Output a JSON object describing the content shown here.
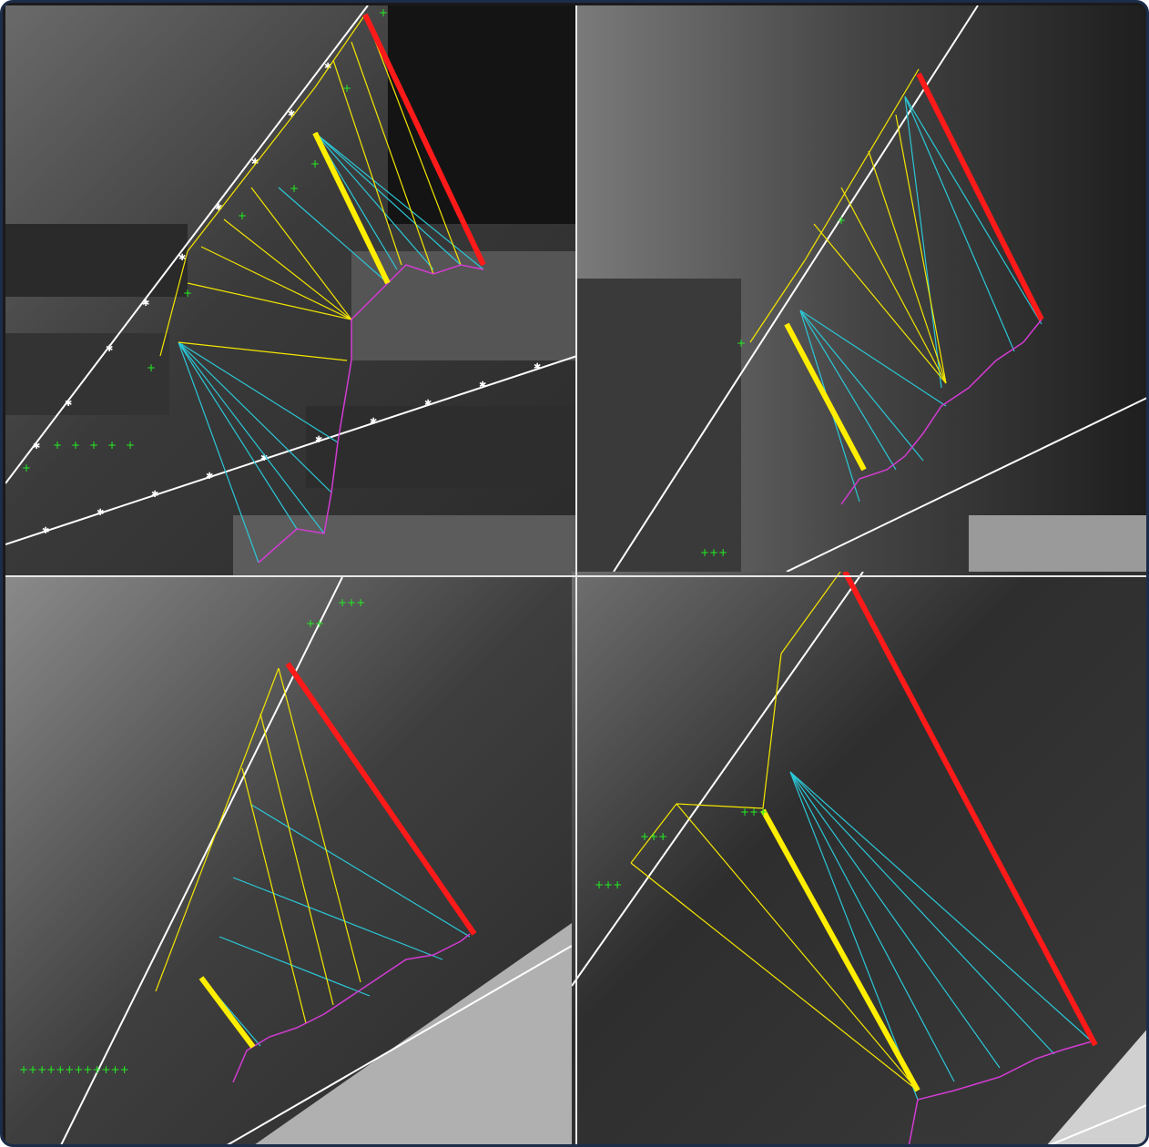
{
  "image": {
    "description_colors": {
      "frame_border": "#1c2d4a",
      "axis_line": "#ffffff",
      "axis_marker": "#ffffff",
      "green_marker": "#22ee22",
      "yellow_line": "#f5e600",
      "cyan_line": "#2bc8d8",
      "magenta_line": "#d23cd2",
      "magenta_point": "#ff44ff",
      "red_line": "#ff1a1a",
      "yellow_bold": "#ffee00"
    },
    "panels": [
      {
        "id": "top-left"
      },
      {
        "id": "top-right"
      },
      {
        "id": "bottom-left"
      },
      {
        "id": "bottom-right"
      }
    ]
  }
}
